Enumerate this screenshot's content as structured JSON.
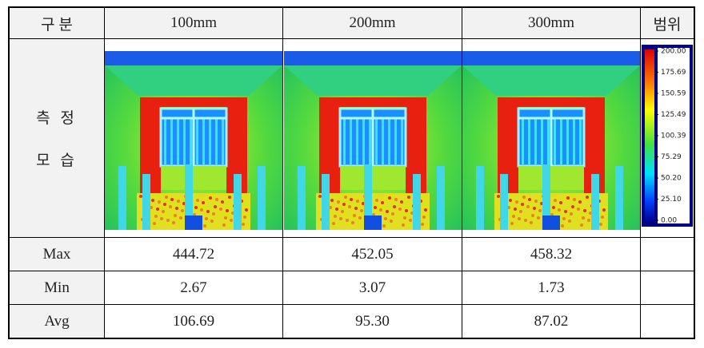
{
  "table": {
    "header": [
      "구 분",
      "100mm",
      "200mm",
      "300mm",
      "범위"
    ],
    "image_row_label": [
      "측 정",
      "모 습"
    ],
    "scale_labels": [
      "200.00",
      "175.69",
      "150.59",
      "125.49",
      "100.39",
      "75.29",
      "50.20",
      "25.10",
      "0.00"
    ],
    "rows": [
      [
        "Max",
        "444.72",
        "452.05",
        "458.32",
        ""
      ],
      [
        "Min",
        "2.67",
        "3.07",
        "1.73",
        ""
      ],
      [
        "Avg",
        "106.69",
        "95.30",
        "87.02",
        ""
      ]
    ]
  }
}
